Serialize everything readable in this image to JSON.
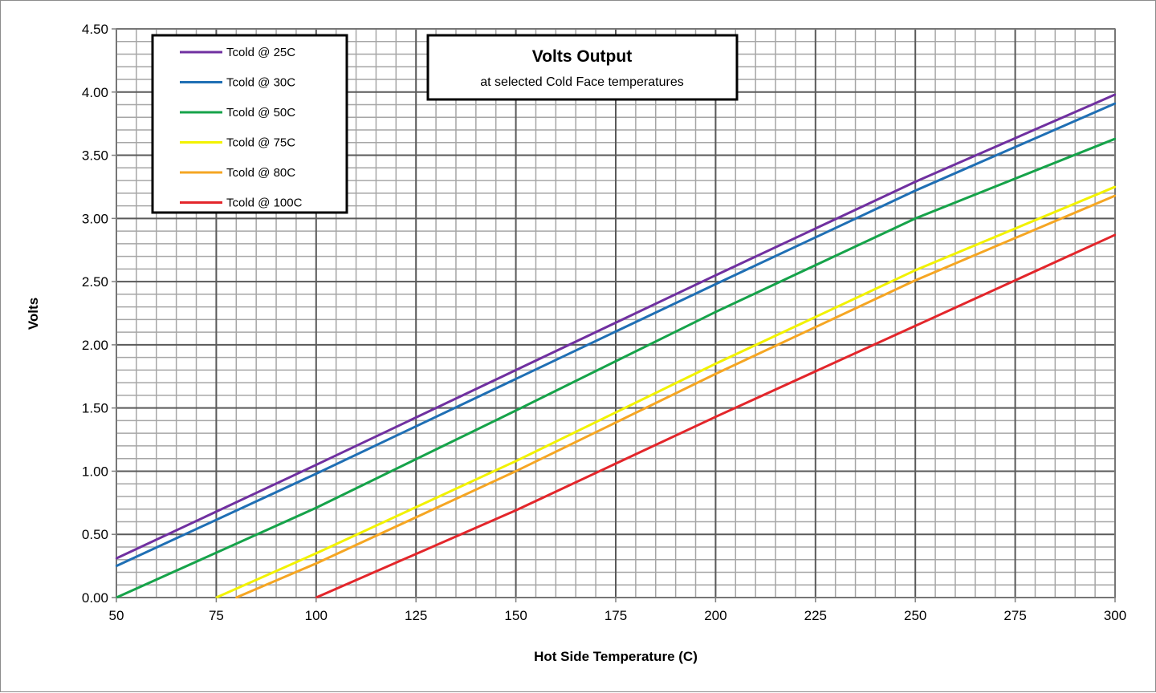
{
  "chart_data": {
    "type": "line",
    "title": "Volts Output",
    "subtitle": "at selected Cold Face temperatures",
    "xlabel": "Hot Side Temperature (C)",
    "ylabel": "Volts",
    "xlim": [
      50,
      300
    ],
    "ylim": [
      0,
      4.5
    ],
    "x_ticks": [
      50,
      75,
      100,
      125,
      150,
      175,
      200,
      225,
      250,
      275,
      300
    ],
    "y_ticks": [
      "0.00",
      "0.50",
      "1.00",
      "1.50",
      "2.00",
      "2.50",
      "3.00",
      "3.50",
      "4.00",
      "4.50"
    ],
    "x_minor_step": 5,
    "y_minor_step": 0.1,
    "grid": true,
    "legend_position": "top-left",
    "series": [
      {
        "name": "Tcold @ 25C",
        "color": "#7030a0",
        "x": [
          50,
          100,
          150,
          200,
          250,
          300
        ],
        "y": [
          0.31,
          1.05,
          1.8,
          2.55,
          3.29,
          3.98
        ]
      },
      {
        "name": "Tcold @ 30C",
        "color": "#1f6fb4",
        "x": [
          50,
          100,
          150,
          200,
          250,
          300
        ],
        "y": [
          0.25,
          0.98,
          1.73,
          2.48,
          3.22,
          3.91
        ]
      },
      {
        "name": "Tcold @ 50C",
        "color": "#16a34a",
        "x": [
          50,
          100,
          150,
          200,
          250,
          300
        ],
        "y": [
          0.0,
          0.71,
          1.48,
          2.26,
          3.0,
          3.63
        ]
      },
      {
        "name": "Tcold @ 75C",
        "color": "#f2f200",
        "x": [
          75,
          100,
          150,
          200,
          250,
          300
        ],
        "y": [
          0.0,
          0.35,
          1.08,
          1.85,
          2.59,
          3.25
        ]
      },
      {
        "name": "Tcold @ 80C",
        "color": "#f5a623",
        "x": [
          80,
          100,
          150,
          200,
          250,
          300
        ],
        "y": [
          0.0,
          0.27,
          1.0,
          1.77,
          2.51,
          3.18
        ]
      },
      {
        "name": "Tcold @ 100C",
        "color": "#e3262b",
        "x": [
          100,
          150,
          200,
          250,
          300
        ],
        "y": [
          0.0,
          0.69,
          1.43,
          2.15,
          2.87
        ]
      }
    ]
  }
}
